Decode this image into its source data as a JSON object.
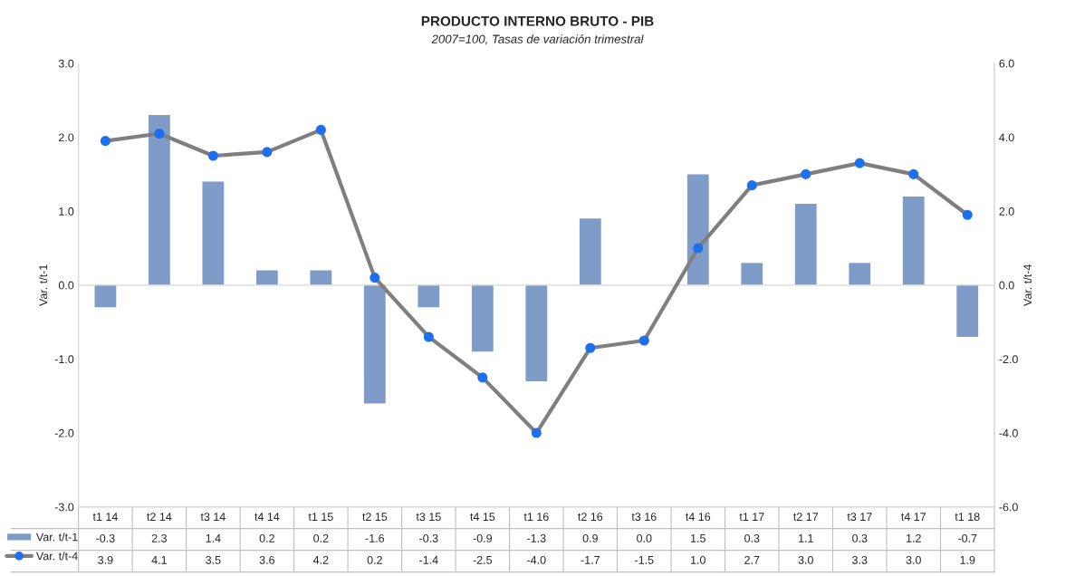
{
  "chart_data": {
    "type": "bar",
    "title": "PRODUCTO INTERNO BRUTO - PIB",
    "subtitle": "2007=100, Tasas de variación trimestral",
    "ylabel": "Var. t/t-1",
    "y2label": "Var. t/t-4",
    "categories": [
      "t1 14",
      "t2 14",
      "t3 14",
      "t4 14",
      "t1 15",
      "t2 15",
      "t3 15",
      "t4 15",
      "t1 16",
      "t2 16",
      "t3 16",
      "t4 16",
      "t1 17",
      "t2 17",
      "t3 17",
      "t4 17",
      "t1 18"
    ],
    "series": [
      {
        "name": "Var. t/t-1",
        "color": "#7f9cc9",
        "values": [
          -0.3,
          2.3,
          1.4,
          0.2,
          0.2,
          -1.6,
          -0.3,
          -0.9,
          -1.3,
          0.9,
          0.0,
          1.5,
          0.3,
          1.1,
          0.3,
          1.2,
          -0.7
        ],
        "value_labels": [
          "-0.3",
          "2.3",
          "1.4",
          "0.2",
          "0.2",
          "-1.6",
          "-0.3",
          "-0.9",
          "-1.3",
          "0.9",
          "0.0",
          "1.5",
          "0.3",
          "1.1",
          "0.3",
          "1.2",
          "-0.7"
        ]
      },
      {
        "name": "Var. t/t-4",
        "type": "line",
        "axis": "y2",
        "color": "#7f7f7f",
        "marker": "circle",
        "values": [
          3.9,
          4.1,
          3.5,
          3.6,
          4.2,
          0.2,
          -1.4,
          -2.5,
          -4.0,
          -1.7,
          -1.5,
          1.0,
          2.7,
          3.0,
          3.3,
          3.0,
          1.9
        ],
        "value_labels": [
          "3.9",
          "4.1",
          "3.5",
          "3.6",
          "4.2",
          "0.2",
          "-1.4",
          "-2.5",
          "-4.0",
          "-1.7",
          "-1.5",
          "1.0",
          "2.7",
          "3.0",
          "3.3",
          "3.0",
          "1.9"
        ]
      }
    ],
    "ylim": [
      -3,
      3
    ],
    "yticks": [
      {
        "value": -3,
        "label": "-3.0"
      },
      {
        "value": -2,
        "label": "-2.0"
      },
      {
        "value": -1,
        "label": "-1.0"
      },
      {
        "value": 0,
        "label": "0.0"
      },
      {
        "value": 1,
        "label": "1.0"
      },
      {
        "value": 2,
        "label": "2.0"
      },
      {
        "value": 3,
        "label": "3.0"
      }
    ],
    "y2lim": [
      -6,
      6
    ],
    "y2ticks": [
      {
        "value": -6,
        "label": "-6.0"
      },
      {
        "value": -4,
        "label": "-4.0"
      },
      {
        "value": -2,
        "label": "-2.0"
      },
      {
        "value": 0,
        "label": "0.0"
      },
      {
        "value": 2,
        "label": "2.0"
      },
      {
        "value": 4,
        "label": "4.0"
      },
      {
        "value": 6,
        "label": "6.0"
      }
    ],
    "legend": "bottom left"
  }
}
